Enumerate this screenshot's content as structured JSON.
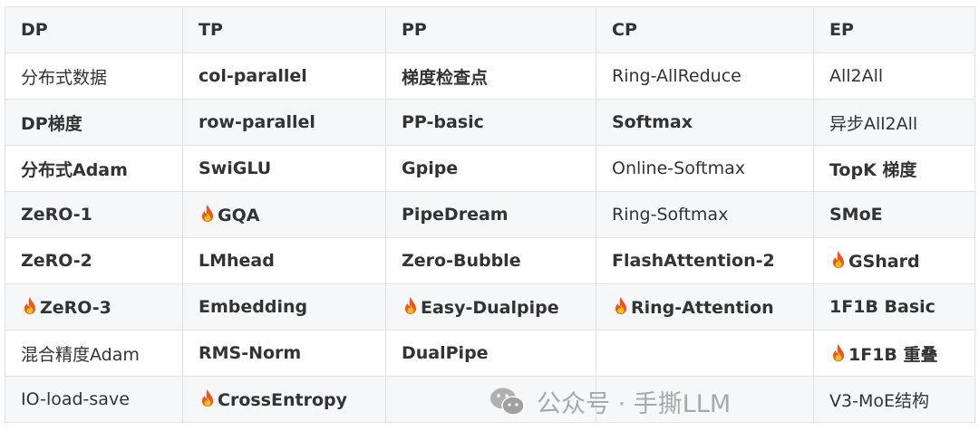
{
  "table": {
    "headers": [
      "DP",
      "TP",
      "PP",
      "CP",
      "EP"
    ],
    "rows": [
      [
        {
          "text": "分布式数据",
          "bold": false
        },
        {
          "text": "col-parallel",
          "bold": true
        },
        {
          "text": "梯度检查点",
          "bold": true
        },
        {
          "text": "Ring-AllReduce",
          "bold": false
        },
        {
          "text": "All2All",
          "bold": false
        }
      ],
      [
        {
          "text": "DP梯度",
          "bold": true
        },
        {
          "text": "row-parallel",
          "bold": true
        },
        {
          "text": "PP-basic",
          "bold": true
        },
        {
          "text": "Softmax",
          "bold": true
        },
        {
          "text": "异步All2All",
          "bold": false
        }
      ],
      [
        {
          "text": "分布式Adam",
          "bold": true
        },
        {
          "text": "SwiGLU",
          "bold": true
        },
        {
          "text": "Gpipe",
          "bold": true
        },
        {
          "text": "Online-Softmax",
          "bold": false
        },
        {
          "text": "TopK 梯度",
          "bold": true
        }
      ],
      [
        {
          "text": "ZeRO-1",
          "bold": true
        },
        {
          "text": "GQA",
          "bold": true,
          "icon": "fire-icon"
        },
        {
          "text": "PipeDream",
          "bold": true
        },
        {
          "text": "Ring-Softmax",
          "bold": false
        },
        {
          "text": "SMoE",
          "bold": true
        }
      ],
      [
        {
          "text": "ZeRO-2",
          "bold": true
        },
        {
          "text": "LMhead",
          "bold": true
        },
        {
          "text": "Zero-Bubble",
          "bold": true
        },
        {
          "text": "FlashAttention-2",
          "bold": true
        },
        {
          "text": "GShard",
          "bold": true,
          "icon": "fire-icon"
        }
      ],
      [
        {
          "text": "ZeRO-3",
          "bold": true,
          "icon": "fire-icon"
        },
        {
          "text": "Embedding",
          "bold": true
        },
        {
          "text": "Easy-Dualpipe",
          "bold": true,
          "icon": "fire-icon"
        },
        {
          "text": "Ring-Attention",
          "bold": true,
          "icon": "fire-icon"
        },
        {
          "text": "1F1B Basic",
          "bold": true
        }
      ],
      [
        {
          "text": "混合精度Adam",
          "bold": false
        },
        {
          "text": "RMS-Norm",
          "bold": true
        },
        {
          "text": "DualPipe",
          "bold": true
        },
        {
          "text": "",
          "bold": false
        },
        {
          "text": "1F1B 重叠",
          "bold": true,
          "icon": "fire-icon"
        }
      ],
      [
        {
          "text": "IO-load-save",
          "bold": false
        },
        {
          "text": "CrossEntropy",
          "bold": true,
          "icon": "fire-icon"
        },
        {
          "text": "",
          "bold": false
        },
        {
          "text": "",
          "bold": false
        },
        {
          "text": "V3-MoE结构",
          "bold": false
        }
      ]
    ]
  },
  "watermark": {
    "text": "公众号 · 手撕LLM",
    "icon": "wechat-icon"
  }
}
